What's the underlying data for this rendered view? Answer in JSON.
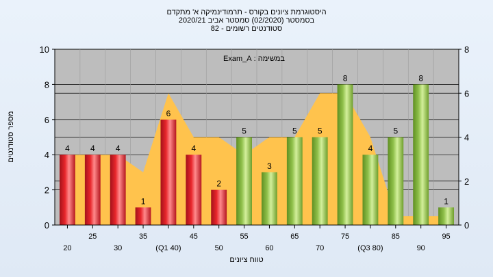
{
  "title": {
    "line1": "היסטוגרמת ציונים בקורס - תרמודינמיקה א' מתקדם",
    "line2": "בסמסטר  (02/2020)  סמסטר אביב 2020/21",
    "line3": "סטודנטים רשומים - 82"
  },
  "chart_data": {
    "type": "bar",
    "legend_text": "במשימה : Exam_A",
    "ylabel": "מספר סטודנטים",
    "xlabel": "טווח ציונים",
    "ylim": [
      0,
      10
    ],
    "yticks": [
      0,
      2,
      4,
      6,
      8,
      10
    ],
    "y2lim": [
      0,
      8
    ],
    "y2ticks": [
      0,
      2,
      4,
      6,
      8
    ],
    "grid": true,
    "categories": [
      "20",
      "25",
      "30",
      "35",
      "(Q1 40)",
      "45",
      "50",
      "55",
      "60",
      "65",
      "70",
      "75",
      "(Q3 80)",
      "85",
      "90",
      "95"
    ],
    "values": [
      4,
      4,
      4,
      1,
      6,
      4,
      2,
      5,
      3,
      5,
      5,
      8,
      4,
      5,
      8,
      1
    ],
    "colors": [
      "red",
      "red",
      "red",
      "red",
      "red",
      "red",
      "red",
      "green",
      "green",
      "green",
      "green",
      "green",
      "green",
      "green",
      "green",
      "green"
    ],
    "bar_colors": {
      "red": "#e8262b",
      "green": "#8fc04a"
    },
    "background_area": {
      "x": [
        "20",
        "25",
        "30",
        "35",
        "(Q1 40)",
        "45",
        "50",
        "55",
        "60",
        "65",
        "70",
        "75",
        "(Q3 80)",
        "85",
        "90",
        "95"
      ],
      "y2": [
        3.2,
        3.2,
        3.2,
        2.4,
        6.0,
        4.0,
        4.0,
        3.2,
        4.0,
        4.0,
        6.0,
        6.0,
        4.0,
        0.4,
        0.4,
        0.4
      ],
      "color": "#ffc34d"
    }
  }
}
